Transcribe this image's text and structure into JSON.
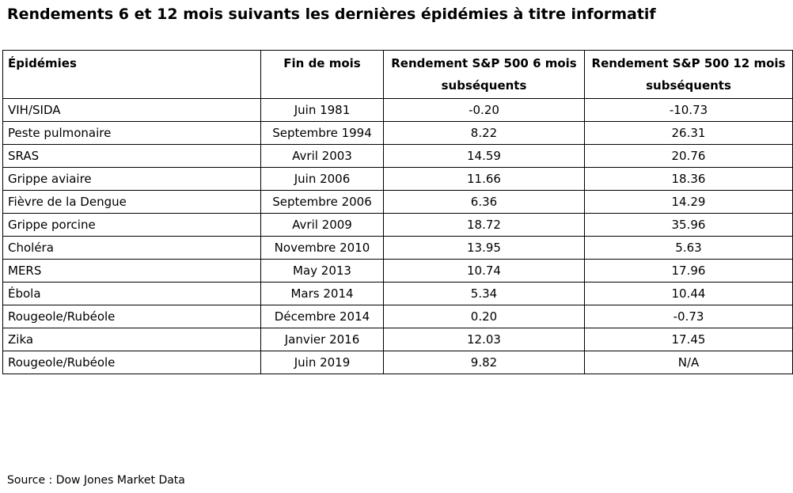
{
  "title": "Rendements 6 et 12 mois suivants les dernières épidémies à titre informatif",
  "table": {
    "headers": {
      "epidemic": "Épidémies",
      "month_end": "Fin de mois",
      "return_6m": "Rendement S&P 500 6 mois subséquents",
      "return_12m": "Rendement S&P 500 12 mois subséquents"
    },
    "rows": [
      {
        "epidemic": "VIH/SIDA",
        "month_end": "Juin 1981",
        "return_6m": "-0.20",
        "return_12m": "-10.73"
      },
      {
        "epidemic": "Peste pulmonaire",
        "month_end": "Septembre 1994",
        "return_6m": "8.22",
        "return_12m": "26.31"
      },
      {
        "epidemic": "SRAS",
        "month_end": "Avril 2003",
        "return_6m": "14.59",
        "return_12m": "20.76"
      },
      {
        "epidemic": "Grippe aviaire",
        "month_end": "Juin 2006",
        "return_6m": "11.66",
        "return_12m": "18.36"
      },
      {
        "epidemic": "Fièvre de la Dengue",
        "month_end": "Septembre 2006",
        "return_6m": "6.36",
        "return_12m": "14.29"
      },
      {
        "epidemic": "Grippe porcine",
        "month_end": "Avril 2009",
        "return_6m": "18.72",
        "return_12m": "35.96"
      },
      {
        "epidemic": "Choléra",
        "month_end": "Novembre 2010",
        "return_6m": "13.95",
        "return_12m": "5.63"
      },
      {
        "epidemic": "MERS",
        "month_end": "May 2013",
        "return_6m": "10.74",
        "return_12m": "17.96"
      },
      {
        "epidemic": "Ébola",
        "month_end": "Mars 2014",
        "return_6m": "5.34",
        "return_12m": "10.44"
      },
      {
        "epidemic": "Rougeole/Rubéole",
        "month_end": "Décembre 2014",
        "return_6m": "0.20",
        "return_12m": "-0.73"
      },
      {
        "epidemic": "Zika",
        "month_end": "Janvier 2016",
        "return_6m": "12.03",
        "return_12m": "17.45"
      },
      {
        "epidemic": "Rougeole/Rubéole",
        "month_end": "Juin 2019",
        "return_6m": "9.82",
        "return_12m": "N/A"
      }
    ]
  },
  "source": "Source : Dow Jones Market Data"
}
